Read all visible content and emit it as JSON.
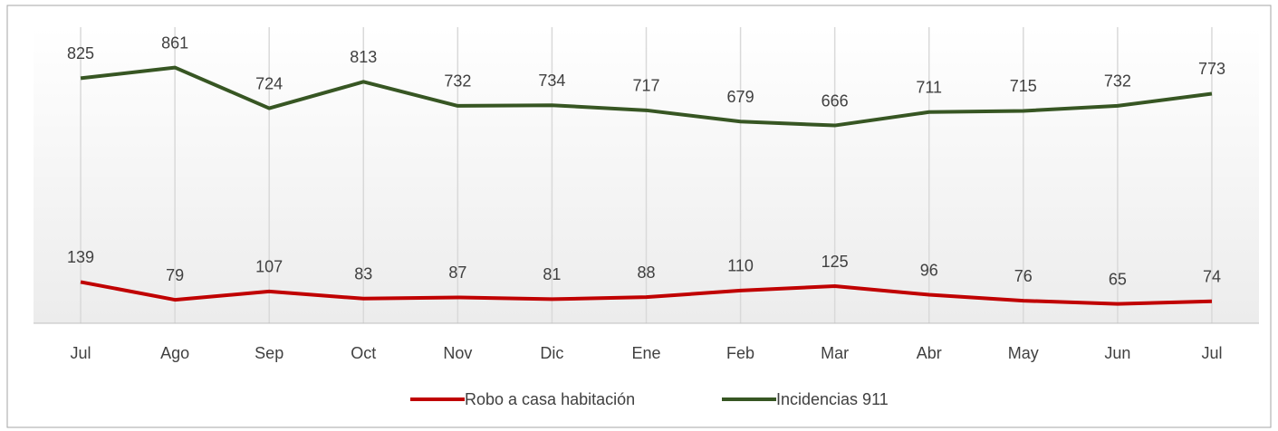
{
  "chart_data": {
    "type": "line",
    "categories": [
      "Jul",
      "Ago",
      "Sep",
      "Oct",
      "Nov",
      "Dic",
      "Ene",
      "Feb",
      "Mar",
      "Abr",
      "May",
      "Jun",
      "Jul"
    ],
    "series": [
      {
        "name": "Robo a casa habitación",
        "color": "#c00000",
        "values": [
          139,
          79,
          107,
          83,
          87,
          81,
          88,
          110,
          125,
          96,
          76,
          65,
          74
        ]
      },
      {
        "name": "Incidencias 911",
        "color": "#375623",
        "values": [
          825,
          861,
          724,
          813,
          732,
          734,
          717,
          679,
          666,
          711,
          715,
          732,
          773
        ]
      }
    ],
    "ylim": [
      0,
      1000
    ],
    "grid": true,
    "legend": "bottom"
  }
}
